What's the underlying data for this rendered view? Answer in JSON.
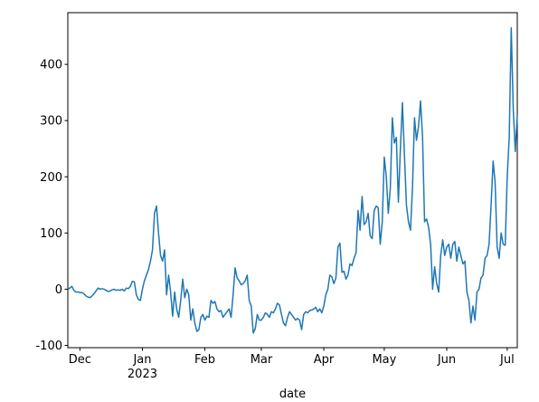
{
  "chart_data": {
    "type": "line",
    "xlabel": "date",
    "color": "#1f77b4",
    "x": [
      "2022-11-25",
      "2022-11-26",
      "2022-11-27",
      "2022-11-28",
      "2022-11-29",
      "2022-11-30",
      "2022-12-01",
      "2022-12-02",
      "2022-12-03",
      "2022-12-04",
      "2022-12-05",
      "2022-12-06",
      "2022-12-07",
      "2022-12-08",
      "2022-12-09",
      "2022-12-10",
      "2022-12-11",
      "2022-12-12",
      "2022-12-13",
      "2022-12-14",
      "2022-12-15",
      "2022-12-16",
      "2022-12-17",
      "2022-12-18",
      "2022-12-19",
      "2022-12-20",
      "2022-12-21",
      "2022-12-22",
      "2022-12-23",
      "2022-12-24",
      "2022-12-25",
      "2022-12-26",
      "2022-12-27",
      "2022-12-28",
      "2022-12-29",
      "2022-12-30",
      "2022-12-31",
      "2023-01-01",
      "2023-01-02",
      "2023-01-03",
      "2023-01-04",
      "2023-01-05",
      "2023-01-06",
      "2023-01-07",
      "2023-01-08",
      "2023-01-09",
      "2023-01-10",
      "2023-01-11",
      "2023-01-12",
      "2023-01-13",
      "2023-01-14",
      "2023-01-15",
      "2023-01-16",
      "2023-01-17",
      "2023-01-18",
      "2023-01-19",
      "2023-01-20",
      "2023-01-21",
      "2023-01-22",
      "2023-01-23",
      "2023-01-24",
      "2023-01-25",
      "2023-01-26",
      "2023-01-27",
      "2023-01-28",
      "2023-01-29",
      "2023-01-30",
      "2023-01-31",
      "2023-02-01",
      "2023-02-02",
      "2023-02-03",
      "2023-02-04",
      "2023-02-05",
      "2023-02-06",
      "2023-02-07",
      "2023-02-08",
      "2023-02-09",
      "2023-02-10",
      "2023-02-11",
      "2023-02-12",
      "2023-02-13",
      "2023-02-14",
      "2023-02-15",
      "2023-02-16",
      "2023-02-17",
      "2023-02-18",
      "2023-02-19",
      "2023-02-20",
      "2023-02-21",
      "2023-02-22",
      "2023-02-23",
      "2023-02-24",
      "2023-02-25",
      "2023-02-26",
      "2023-02-27",
      "2023-02-28",
      "2023-03-01",
      "2023-03-02",
      "2023-03-03",
      "2023-03-04",
      "2023-03-05",
      "2023-03-06",
      "2023-03-07",
      "2023-03-08",
      "2023-03-09",
      "2023-03-10",
      "2023-03-11",
      "2023-03-12",
      "2023-03-13",
      "2023-03-14",
      "2023-03-15",
      "2023-03-16",
      "2023-03-17",
      "2023-03-18",
      "2023-03-19",
      "2023-03-20",
      "2023-03-21",
      "2023-03-22",
      "2023-03-23",
      "2023-03-24",
      "2023-03-25",
      "2023-03-26",
      "2023-03-27",
      "2023-03-28",
      "2023-03-29",
      "2023-03-30",
      "2023-03-31",
      "2023-04-01",
      "2023-04-02",
      "2023-04-03",
      "2023-04-04",
      "2023-04-05",
      "2023-04-06",
      "2023-04-07",
      "2023-04-08",
      "2023-04-09",
      "2023-04-10",
      "2023-04-11",
      "2023-04-12",
      "2023-04-13",
      "2023-04-14",
      "2023-04-15",
      "2023-04-16",
      "2023-04-17",
      "2023-04-18",
      "2023-04-19",
      "2023-04-20",
      "2023-04-21",
      "2023-04-22",
      "2023-04-23",
      "2023-04-24",
      "2023-04-25",
      "2023-04-26",
      "2023-04-27",
      "2023-04-28",
      "2023-04-29",
      "2023-04-30",
      "2023-05-01",
      "2023-05-02",
      "2023-05-03",
      "2023-05-04",
      "2023-05-05",
      "2023-05-06",
      "2023-05-07",
      "2023-05-08",
      "2023-05-09",
      "2023-05-10",
      "2023-05-11",
      "2023-05-12",
      "2023-05-13",
      "2023-05-14",
      "2023-05-15",
      "2023-05-16",
      "2023-05-17",
      "2023-05-18",
      "2023-05-19",
      "2023-05-20",
      "2023-05-21",
      "2023-05-22",
      "2023-05-23",
      "2023-05-24",
      "2023-05-25",
      "2023-05-26",
      "2023-05-27",
      "2023-05-28",
      "2023-05-29",
      "2023-05-30",
      "2023-05-31",
      "2023-06-01",
      "2023-06-02",
      "2023-06-03",
      "2023-06-04",
      "2023-06-05",
      "2023-06-06",
      "2023-06-07",
      "2023-06-08",
      "2023-06-09",
      "2023-06-10",
      "2023-06-11",
      "2023-06-12",
      "2023-06-13",
      "2023-06-14",
      "2023-06-15",
      "2023-06-16",
      "2023-06-17",
      "2023-06-18",
      "2023-06-19",
      "2023-06-20",
      "2023-06-21",
      "2023-06-22",
      "2023-06-23",
      "2023-06-24",
      "2023-06-25",
      "2023-06-26",
      "2023-06-27",
      "2023-06-28",
      "2023-06-29",
      "2023-06-30",
      "2023-07-01",
      "2023-07-02",
      "2023-07-03",
      "2023-07-04",
      "2023-07-05",
      "2023-07-06"
    ],
    "values": [
      0,
      2,
      5,
      -2,
      -5,
      -5,
      -6,
      -6,
      -8,
      -12,
      -14,
      -15,
      -12,
      -8,
      -3,
      2,
      0,
      1,
      0,
      -2,
      -4,
      -3,
      -1,
      0,
      -2,
      -1,
      -2,
      0,
      -3,
      2,
      1,
      5,
      14,
      13,
      -10,
      -18,
      -20,
      0,
      15,
      25,
      35,
      50,
      70,
      135,
      148,
      100,
      60,
      50,
      70,
      -10,
      25,
      -5,
      -48,
      -5,
      -35,
      -50,
      -20,
      18,
      -15,
      0,
      -10,
      -55,
      -35,
      -60,
      -75,
      -72,
      -50,
      -45,
      -55,
      -48,
      -50,
      -20,
      -25,
      -22,
      -35,
      -40,
      -38,
      -50,
      -45,
      -40,
      -35,
      -50,
      -10,
      38,
      20,
      15,
      8,
      10,
      15,
      25,
      -20,
      -30,
      -78,
      -70,
      -45,
      -55,
      -55,
      -50,
      -42,
      -45,
      -50,
      -40,
      -42,
      -35,
      -25,
      -28,
      -45,
      -60,
      -65,
      -50,
      -40,
      -45,
      -50,
      -55,
      -52,
      -55,
      -72,
      -45,
      -40,
      -42,
      -38,
      -37,
      -35,
      -32,
      -40,
      -35,
      -42,
      -30,
      -10,
      0,
      25,
      22,
      10,
      20,
      75,
      82,
      30,
      32,
      18,
      25,
      45,
      42,
      55,
      65,
      140,
      105,
      165,
      115,
      120,
      135,
      95,
      90,
      140,
      148,
      145,
      80,
      120,
      235,
      200,
      135,
      180,
      305,
      260,
      270,
      155,
      250,
      332,
      240,
      150,
      120,
      105,
      180,
      305,
      265,
      290,
      335,
      270,
      120,
      125,
      110,
      80,
      0,
      40,
      10,
      -5,
      60,
      88,
      60,
      75,
      80,
      55,
      80,
      85,
      50,
      75,
      60,
      45,
      50,
      -5,
      -20,
      -60,
      -30,
      -55,
      -5,
      0,
      20,
      25,
      55,
      60,
      80,
      150,
      228,
      190,
      75,
      55,
      100,
      80,
      78,
      200,
      270,
      465,
      320,
      245,
      310
    ],
    "xlim": [
      "2022-11-25",
      "2023-07-06"
    ],
    "xticks": [
      {
        "value": "2022-12-01",
        "label": "Dec"
      },
      {
        "value": "2023-01-01",
        "label": "Jan\n2023"
      },
      {
        "value": "2023-02-01",
        "label": "Feb"
      },
      {
        "value": "2023-03-01",
        "label": "Mar"
      },
      {
        "value": "2023-04-01",
        "label": "Apr"
      },
      {
        "value": "2023-05-01",
        "label": "May"
      },
      {
        "value": "2023-06-01",
        "label": "Jun"
      },
      {
        "value": "2023-07-01",
        "label": "Jul"
      }
    ],
    "ylim": [
      -104,
      492
    ],
    "yticks": [
      -100,
      0,
      100,
      200,
      300,
      400
    ]
  }
}
